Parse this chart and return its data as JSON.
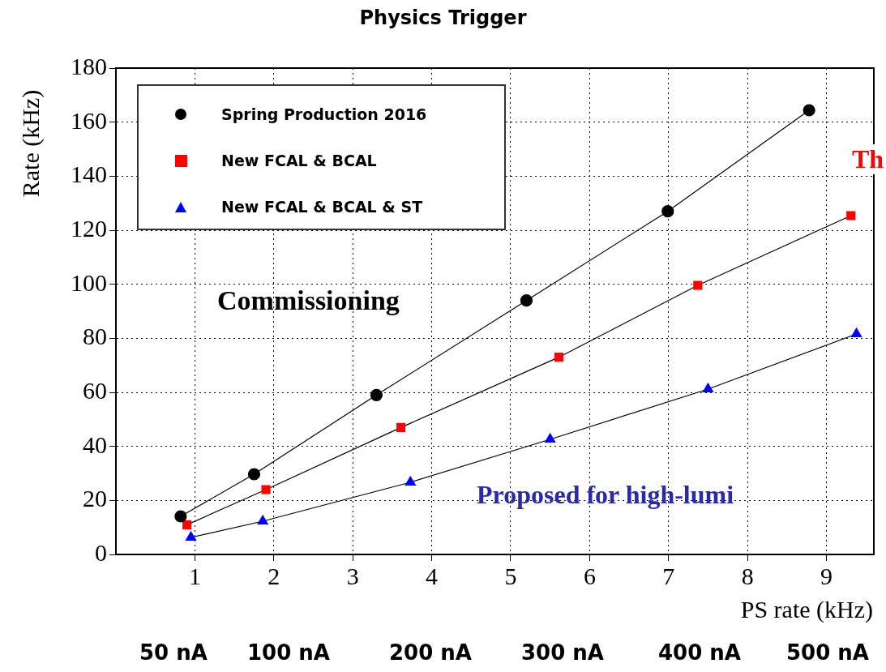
{
  "chart_data": {
    "type": "line",
    "title": "Physics Trigger",
    "xlabel": "PS rate  (kHz)",
    "ylabel": "Rate  (kHz)",
    "xlim": [
      0,
      9.6
    ],
    "xticks": [
      1,
      2,
      3,
      4,
      5,
      6,
      7,
      8,
      9
    ],
    "ylim": [
      0,
      180
    ],
    "yticks": [
      0,
      20,
      40,
      60,
      80,
      100,
      120,
      140,
      160,
      180
    ],
    "grid": true,
    "legend": "top left",
    "line_style": "solid",
    "series": [
      {
        "name": "Spring Production 2016",
        "color": "#000000",
        "marker": "circle",
        "x": [
          0.82,
          1.75,
          3.3,
          5.2,
          6.99,
          8.78
        ],
        "values": [
          14.1,
          29.7,
          59,
          94,
          127,
          164.4
        ]
      },
      {
        "name": "New FCAL & BCAL",
        "color": "#ff0000",
        "marker": "square",
        "x": [
          0.9,
          1.9,
          3.61,
          5.61,
          7.37,
          9.31
        ],
        "values": [
          11,
          24,
          47,
          73,
          99.6,
          125.4
        ]
      },
      {
        "name": "New FCAL & BCAL & ST",
        "color": "#0000ff",
        "marker": "triangle",
        "x": [
          0.95,
          1.86,
          3.73,
          5.5,
          7.5,
          9.38
        ],
        "values": [
          6.3,
          12.3,
          26.7,
          42.6,
          61.2,
          81.6
        ]
      }
    ],
    "annotations": [
      "Commissioning",
      "Proposed for high-lumi",
      "Th",
      "50 nA",
      "100 nA",
      "200 nA",
      "300 nA",
      "400 nA",
      "500 nA"
    ]
  }
}
